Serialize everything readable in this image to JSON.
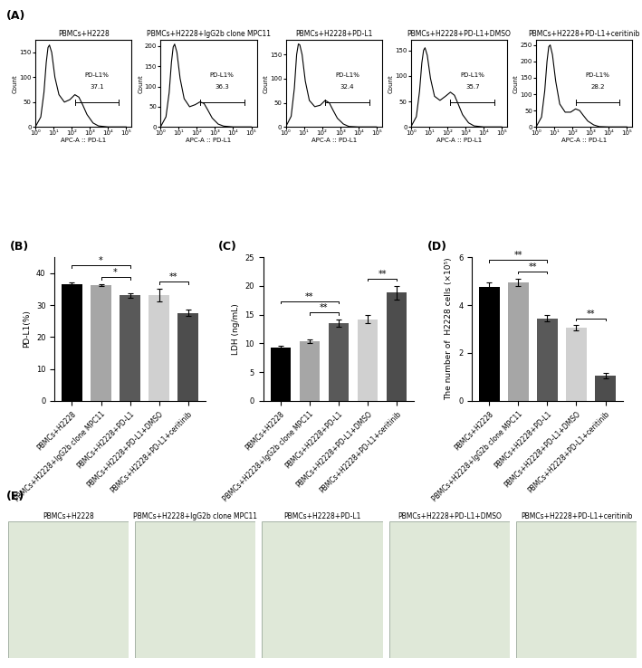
{
  "panel_labels": [
    "(A)",
    "(B)",
    "(C)",
    "(D)",
    "(E)"
  ],
  "chart_data": [
    {
      "type": "histogram_line",
      "title": "PBMCs+H2228",
      "x_label": "APC-A :: PD-L1",
      "y_label": "Count",
      "x": [
        1,
        2,
        3,
        4,
        5,
        6,
        8,
        12,
        20,
        40,
        80,
        150,
        250,
        400,
        700,
        1500,
        3000,
        10000,
        100000
      ],
      "values": [
        0,
        20,
        70,
        130,
        160,
        165,
        150,
        100,
        65,
        50,
        55,
        65,
        60,
        45,
        25,
        8,
        2,
        0,
        0
      ],
      "color": "#000000",
      "log": "x",
      "xlim": [
        1,
        200000
      ],
      "xticks": [
        {
          "value": 1,
          "label": "10⁰"
        },
        {
          "value": 10,
          "label": "10¹"
        },
        {
          "value": 100,
          "label": "10²"
        },
        {
          "value": 1000,
          "label": "10³"
        },
        {
          "value": 10000,
          "label": "10⁴"
        },
        {
          "value": 100000,
          "label": "10⁵"
        }
      ],
      "ylim": [
        0,
        175
      ],
      "yticks": [
        0,
        50,
        100,
        150
      ],
      "gate": [
        150,
        40000
      ],
      "gate_label": "PD-L1%",
      "gate_value": 37.1
    },
    {
      "type": "histogram_line",
      "title": "PBMCs+H2228+IgG2b clone MPC11",
      "x_label": "APC-A :: PD-L1",
      "y_label": "Count",
      "x": [
        1,
        2,
        3,
        4,
        5,
        6,
        8,
        12,
        20,
        40,
        80,
        150,
        250,
        400,
        700,
        1500,
        3000,
        10000,
        100000
      ],
      "values": [
        0,
        25,
        85,
        160,
        198,
        205,
        185,
        120,
        70,
        50,
        55,
        62,
        58,
        42,
        22,
        7,
        2,
        0,
        0
      ],
      "color": "#000000",
      "log": "x",
      "xlim": [
        1,
        200000
      ],
      "xticks": [
        {
          "value": 1,
          "label": "10⁰"
        },
        {
          "value": 10,
          "label": "10¹"
        },
        {
          "value": 100,
          "label": "10²"
        },
        {
          "value": 1000,
          "label": "10³"
        },
        {
          "value": 10000,
          "label": "10⁴"
        },
        {
          "value": 100000,
          "label": "10⁵"
        }
      ],
      "ylim": [
        0,
        215
      ],
      "yticks": [
        0,
        50,
        100,
        150,
        200
      ],
      "gate": [
        150,
        40000
      ],
      "gate_label": "PD-L1%",
      "gate_value": 36.3
    },
    {
      "type": "histogram_line",
      "title": "PBMCs+H2228+PD-L1",
      "x_label": "APC-A :: PD-L1",
      "y_label": "Count",
      "x": [
        1,
        2,
        3,
        4,
        5,
        6,
        8,
        12,
        20,
        40,
        80,
        150,
        250,
        400,
        700,
        1500,
        3000,
        10000,
        100000
      ],
      "values": [
        0,
        22,
        80,
        150,
        172,
        170,
        150,
        95,
        55,
        42,
        45,
        55,
        50,
        35,
        18,
        6,
        1,
        0,
        0
      ],
      "color": "#000000",
      "log": "x",
      "xlim": [
        1,
        200000
      ],
      "xticks": [
        {
          "value": 1,
          "label": "10⁰"
        },
        {
          "value": 10,
          "label": "10¹"
        },
        {
          "value": 100,
          "label": "10²"
        },
        {
          "value": 1000,
          "label": "10³"
        },
        {
          "value": 10000,
          "label": "10⁴"
        },
        {
          "value": 100000,
          "label": "10⁵"
        }
      ],
      "ylim": [
        0,
        180
      ],
      "yticks": [
        0,
        50,
        100,
        150
      ],
      "gate": [
        150,
        40000
      ],
      "gate_label": "PD-L1%",
      "gate_value": 32.4
    },
    {
      "type": "histogram_line",
      "title": "PBMCs+H2228+PD-L1+DMSO",
      "x_label": "APC-A :: PD-L1",
      "y_label": "Count",
      "x": [
        1,
        2,
        3,
        4,
        5,
        6,
        8,
        12,
        20,
        40,
        80,
        150,
        250,
        400,
        700,
        1500,
        3000,
        10000,
        100000
      ],
      "values": [
        0,
        20,
        70,
        125,
        150,
        155,
        140,
        95,
        60,
        52,
        60,
        68,
        62,
        45,
        24,
        8,
        2,
        0,
        0
      ],
      "color": "#000000",
      "log": "x",
      "xlim": [
        1,
        200000
      ],
      "xticks": [
        {
          "value": 1,
          "label": "10⁰"
        },
        {
          "value": 10,
          "label": "10¹"
        },
        {
          "value": 100,
          "label": "10²"
        },
        {
          "value": 1000,
          "label": "10³"
        },
        {
          "value": 10000,
          "label": "10⁴"
        },
        {
          "value": 100000,
          "label": "10⁵"
        }
      ],
      "ylim": [
        0,
        170
      ],
      "yticks": [
        0,
        50,
        100,
        150
      ],
      "gate": [
        150,
        40000
      ],
      "gate_label": "PD-L1%",
      "gate_value": 35.7
    },
    {
      "type": "histogram_line",
      "title": "PBMCs+H2228+PD-L1+ceritinib",
      "x_label": "APC-A :: PD-L1",
      "y_label": "Count",
      "x": [
        1,
        2,
        3,
        4,
        5,
        6,
        8,
        12,
        20,
        40,
        80,
        150,
        250,
        400,
        700,
        1500,
        3000,
        10000,
        100000
      ],
      "values": [
        0,
        30,
        110,
        200,
        245,
        250,
        220,
        140,
        70,
        45,
        45,
        55,
        50,
        35,
        18,
        6,
        1,
        0,
        0
      ],
      "color": "#000000",
      "log": "x",
      "xlim": [
        1,
        200000
      ],
      "xticks": [
        {
          "value": 1,
          "label": "10⁰"
        },
        {
          "value": 10,
          "label": "10¹"
        },
        {
          "value": 100,
          "label": "10²"
        },
        {
          "value": 1000,
          "label": "10³"
        },
        {
          "value": 10000,
          "label": "10⁴"
        },
        {
          "value": 100000,
          "label": "10⁵"
        }
      ],
      "ylim": [
        0,
        265
      ],
      "yticks": [
        0,
        50,
        100,
        150,
        200,
        250
      ],
      "gate": [
        150,
        40000
      ],
      "gate_label": "PD-L1%",
      "gate_value": 28.2
    },
    {
      "type": "bar",
      "y_label": "PD-L1(%)",
      "categories": [
        "PBMCs+H2228",
        "PBMCs+H2228+IgG2b clone MPC11",
        "PBMCs+H2228+PD-L1",
        "PBMCs+H2228+PD-L1+DMSO",
        "PBMCs+H2228+PD-L1+ceritinib"
      ],
      "values": [
        36.5,
        36.2,
        33.0,
        33.0,
        27.5
      ],
      "errors": [
        0.7,
        0.3,
        0.6,
        2.0,
        1.0
      ],
      "colors": [
        "#000000",
        "#a6a6a6",
        "#595959",
        "#d0d0d0",
        "#4d4d4d"
      ],
      "ylim": [
        0,
        45
      ],
      "yticks": [
        0,
        10,
        20,
        30,
        40
      ],
      "significance": [
        {
          "pair": [
            1,
            2
          ],
          "label": "*"
        },
        {
          "pair": [
            0,
            2
          ],
          "label": "*"
        },
        {
          "pair": [
            3,
            4
          ],
          "label": "**"
        }
      ]
    },
    {
      "type": "bar",
      "y_label": "LDH (ng/mL)",
      "categories": [
        "PBMCs+H2228",
        "PBMCs+H2228+IgG2b clone MPC11",
        "PBMCs+H2228+PD-L1",
        "PBMCs+H2228+PD-L1+DMSO",
        "PBMCs+H2228+PD-L1+ceritinib"
      ],
      "values": [
        9.3,
        10.4,
        13.5,
        14.2,
        18.8
      ],
      "errors": [
        0.3,
        0.3,
        0.6,
        0.7,
        1.2
      ],
      "colors": [
        "#000000",
        "#a6a6a6",
        "#595959",
        "#d0d0d0",
        "#4d4d4d"
      ],
      "ylim": [
        0,
        25
      ],
      "yticks": [
        0,
        5,
        10,
        15,
        20,
        25
      ],
      "significance": [
        {
          "pair": [
            1,
            2
          ],
          "label": "**"
        },
        {
          "pair": [
            0,
            2
          ],
          "label": "**"
        },
        {
          "pair": [
            3,
            4
          ],
          "label": "**"
        }
      ]
    },
    {
      "type": "bar",
      "y_label": "The number of  H2228 cells (×10⁵)",
      "categories": [
        "PBMCs+H2228",
        "PBMCs+H2228+IgG2b clone MPC11",
        "PBMCs+H2228+PD-L1",
        "PBMCs+H2228+PD-L1+DMSO",
        "PBMCs+H2228+PD-L1+ceritinib"
      ],
      "values": [
        4.75,
        4.95,
        3.45,
        3.05,
        1.05
      ],
      "errors": [
        0.2,
        0.15,
        0.12,
        0.1,
        0.12
      ],
      "colors": [
        "#000000",
        "#a6a6a6",
        "#595959",
        "#d0d0d0",
        "#4d4d4d"
      ],
      "ylim": [
        0,
        6
      ],
      "yticks": [
        0,
        2,
        4,
        6
      ],
      "significance": [
        {
          "pair": [
            1,
            2
          ],
          "label": "**"
        },
        {
          "pair": [
            0,
            2
          ],
          "label": "**"
        },
        {
          "pair": [
            3,
            4
          ],
          "label": "**"
        }
      ]
    }
  ],
  "images": {
    "titles": [
      "PBMCs+H2228",
      "PBMCs+H2228+IgG2b clone MPC11",
      "PBMCs+H2228+PD-L1",
      "PBMCs+H2228+PD-L1+DMSO",
      "PBMCs+H2228+PD-L1+ceritinib"
    ]
  }
}
